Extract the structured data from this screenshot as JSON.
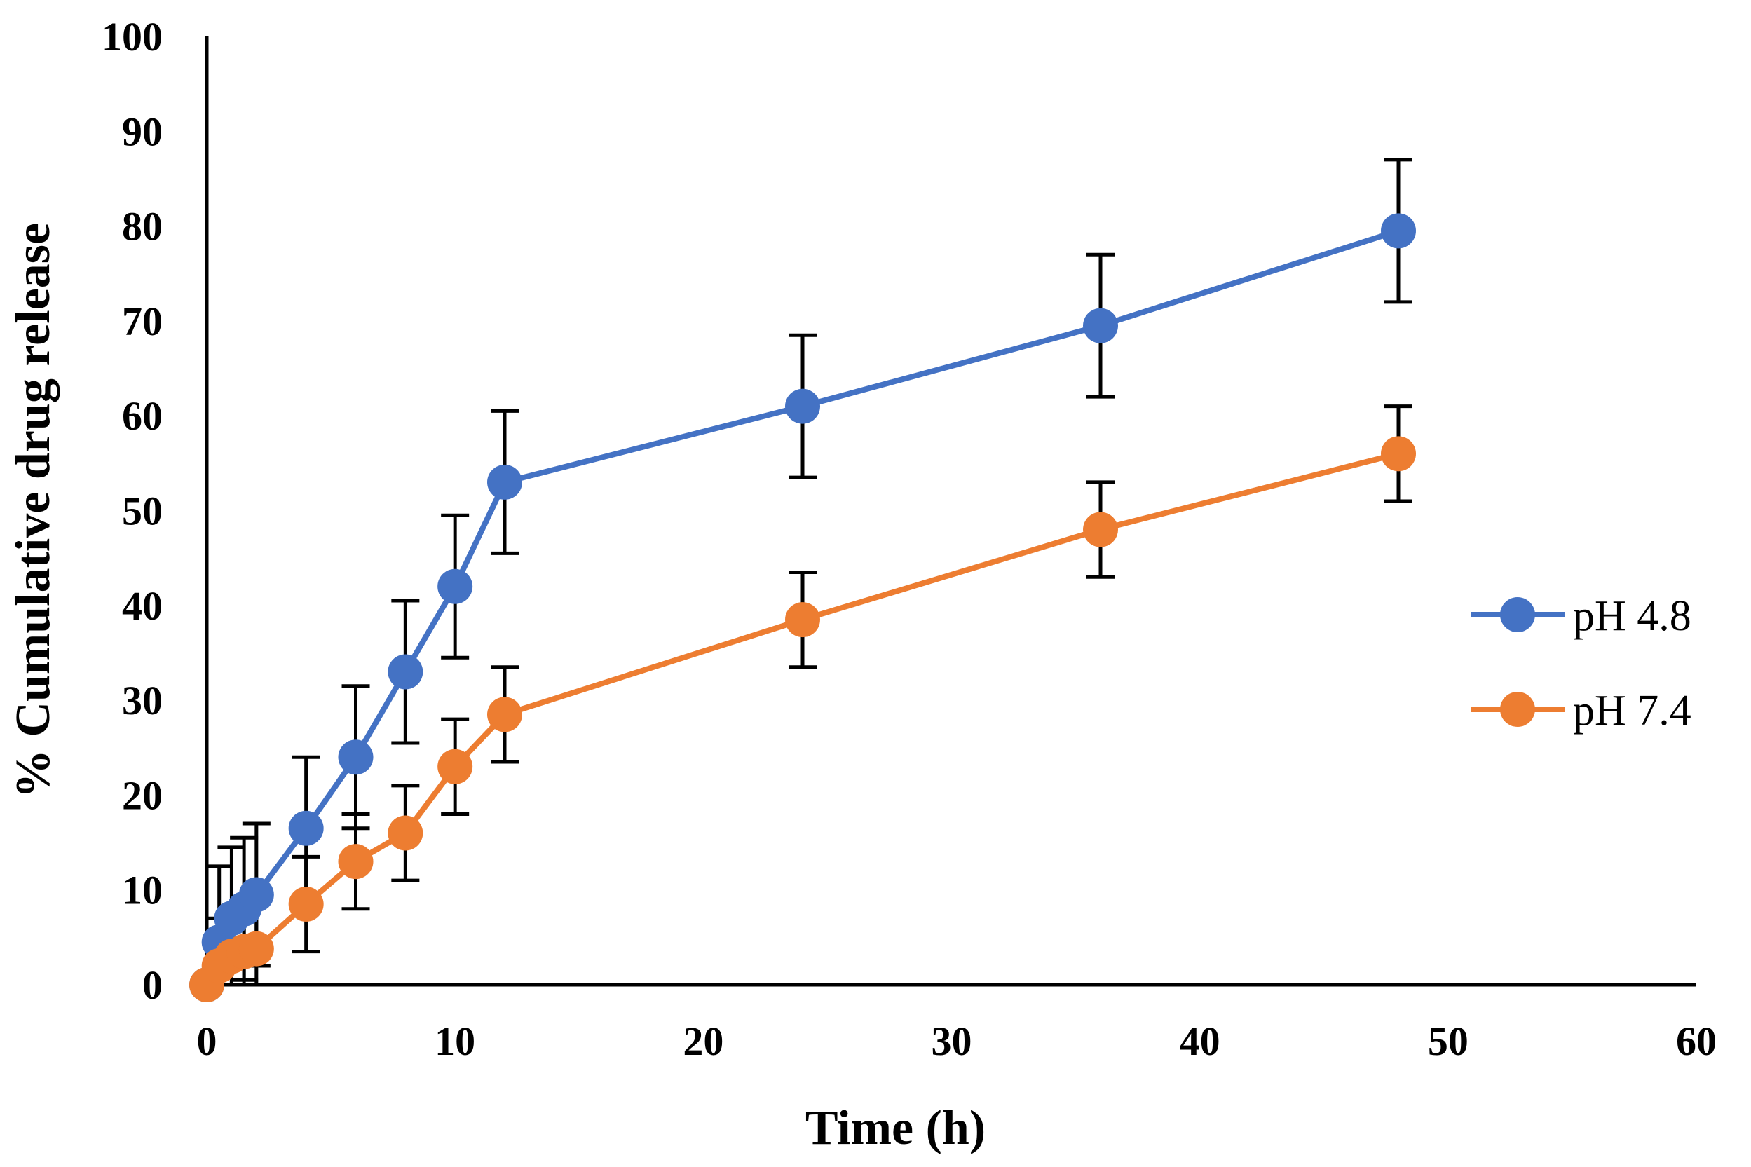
{
  "chart_data": {
    "type": "line",
    "title": "",
    "xlabel": "Time (h)",
    "ylabel": "% Cumulative drug release",
    "xlim": [
      0,
      60
    ],
    "ylim": [
      0,
      100
    ],
    "xticks": [
      0,
      10,
      20,
      30,
      40,
      50,
      60
    ],
    "yticks": [
      0,
      10,
      20,
      30,
      40,
      50,
      60,
      70,
      80,
      90,
      100
    ],
    "grid": false,
    "legend_position": "right",
    "series": [
      {
        "name": "pH 4.8",
        "color": "#4472C4",
        "x": [
          0,
          0.5,
          1,
          1.5,
          2,
          4,
          6,
          8,
          10,
          12,
          24,
          36,
          48
        ],
        "y": [
          0,
          4.5,
          7,
          8,
          9.5,
          16.5,
          24,
          33,
          42,
          53,
          61,
          69.5,
          79.5
        ],
        "err": [
          0,
          8,
          7.5,
          7.5,
          7.5,
          7.5,
          7.5,
          7.5,
          7.5,
          7.5,
          7.5,
          7.5,
          7.5
        ]
      },
      {
        "name": "pH 7.4",
        "color": "#ED7D31",
        "x": [
          0,
          0.5,
          1,
          1.5,
          2,
          4,
          6,
          8,
          10,
          12,
          24,
          36,
          48
        ],
        "y": [
          0,
          2,
          3,
          3.5,
          3.8,
          8.5,
          13,
          16,
          23,
          28.5,
          38.5,
          48,
          56
        ],
        "err": [
          0,
          5,
          5,
          5,
          5,
          5,
          5,
          5,
          5,
          5,
          5,
          5,
          5
        ]
      }
    ]
  }
}
